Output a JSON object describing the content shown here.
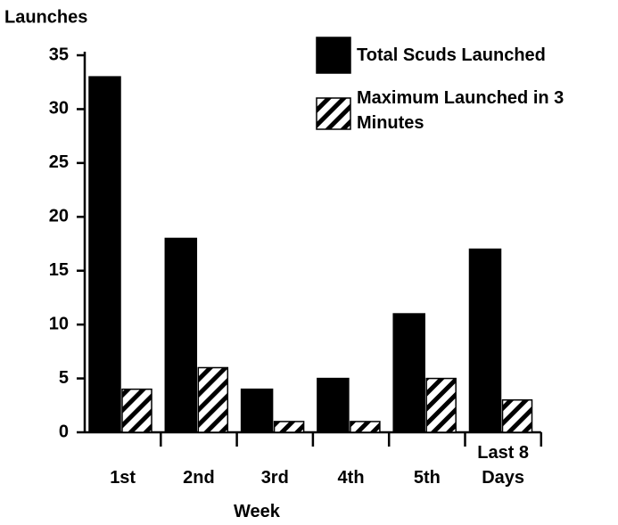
{
  "chart_data": {
    "type": "bar",
    "y_axis_label": "Launches",
    "x_axis_label": "Week",
    "categories": [
      "1st",
      "2nd",
      "3rd",
      "4th",
      "5th",
      "Last 8 Days"
    ],
    "series": [
      {
        "name": "Total Scuds Launched",
        "color": "#000000",
        "values": [
          33,
          18,
          4,
          5,
          11,
          17
        ]
      },
      {
        "name": "Maximum Launched in 3 Minutes",
        "color": "hatch",
        "values": [
          4,
          6,
          1,
          1,
          5,
          3
        ]
      }
    ],
    "ylim": [
      0,
      35
    ],
    "yticks": [
      0,
      5,
      10,
      15,
      20,
      25,
      30,
      35
    ],
    "grid": false,
    "legend": "top-right"
  }
}
